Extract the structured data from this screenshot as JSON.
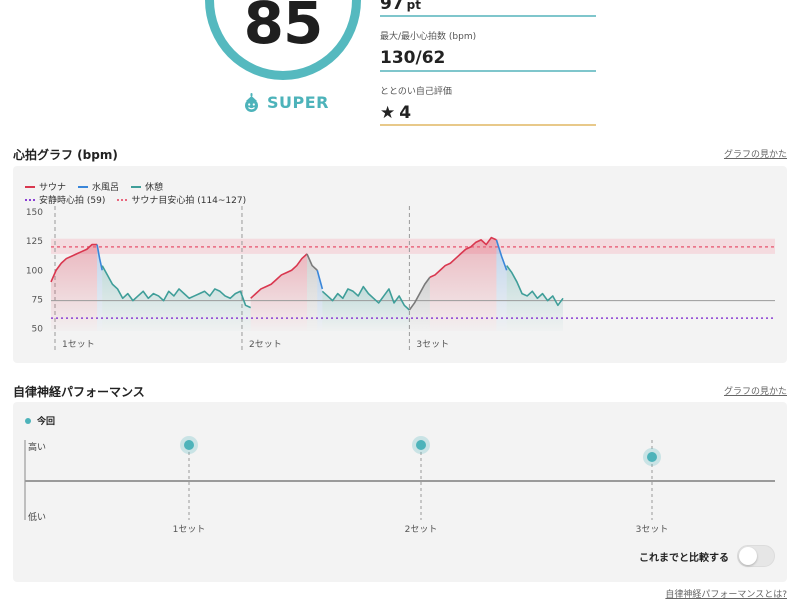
{
  "score": {
    "value": "85",
    "rank": "SUPER"
  },
  "stats": [
    {
      "label": "",
      "value": "97",
      "unit": "pt"
    },
    {
      "label": "最大/最小心拍数 (bpm)",
      "value": "130/62",
      "unit": ""
    },
    {
      "label": "ととのい自己評価",
      "value": "4",
      "unit": ""
    }
  ],
  "heart_section": {
    "title": "心拍グラフ (bpm)",
    "link": "グラフの見かた"
  },
  "legend": {
    "sauna": "サウナ",
    "water": "水風呂",
    "rest": "休憩",
    "resting_hr": "安静時心拍 (59)",
    "target_hr": "サウナ目安心拍 (114~127)"
  },
  "colors": {
    "sauna": "#d9374f",
    "water": "#3a86d9",
    "rest": "#3f9e99",
    "transition": "#7a7a7a",
    "resting": "#8b3fd4",
    "target": "#e9687f",
    "accent": "#4db3ba"
  },
  "chart_data": [
    {
      "type": "line",
      "title": "",
      "yticks": [
        150,
        125,
        100,
        75,
        50
      ],
      "ylim": [
        48,
        155
      ],
      "xlim": [
        0,
        100
      ],
      "sets": [
        "1セット",
        "2セット",
        "3セット"
      ],
      "resting_hr": 59,
      "target_band": [
        114,
        127
      ],
      "target_line": 120,
      "rest_baseline": 74,
      "series": [
        {
          "name": "サウナ",
          "kind": "sauna",
          "x": [
            0,
            1,
            2,
            3,
            4,
            5,
            6,
            7,
            8,
            9
          ],
          "values": [
            90,
            100,
            106,
            110,
            112,
            114,
            116,
            118,
            122,
            122
          ]
        },
        {
          "name": "水風呂",
          "kind": "water",
          "x": [
            9,
            9.5,
            10
          ],
          "values": [
            122,
            110,
            100
          ]
        },
        {
          "name": "休憩",
          "kind": "rest",
          "x": [
            10,
            11,
            12,
            13,
            14,
            15,
            16,
            17,
            18,
            19,
            20,
            21,
            22,
            23,
            24,
            25,
            26,
            27,
            28,
            29,
            30,
            31,
            32,
            33,
            34,
            35,
            36,
            37,
            38,
            39
          ],
          "values": [
            104,
            96,
            88,
            84,
            76,
            80,
            74,
            78,
            82,
            76,
            80,
            78,
            74,
            82,
            78,
            84,
            80,
            76,
            78,
            80,
            82,
            78,
            84,
            82,
            78,
            76,
            80,
            82,
            70,
            68
          ]
        },
        {
          "name": "サウナ",
          "kind": "sauna",
          "x": [
            39,
            40,
            41,
            42,
            43,
            44,
            45,
            46,
            47,
            48,
            49,
            50
          ],
          "values": [
            76,
            80,
            84,
            86,
            88,
            92,
            96,
            98,
            100,
            104,
            110,
            114
          ]
        },
        {
          "name": "休憩",
          "kind": "transition",
          "x": [
            50,
            51,
            52
          ],
          "values": [
            114,
            104,
            100
          ]
        },
        {
          "name": "水風呂",
          "kind": "water",
          "x": [
            52,
            53
          ],
          "values": [
            100,
            84
          ]
        },
        {
          "name": "休憩",
          "kind": "rest",
          "x": [
            53,
            54,
            55,
            56,
            57,
            58,
            59,
            60,
            61,
            62,
            63,
            64,
            65,
            66,
            67,
            68,
            69,
            70
          ],
          "values": [
            82,
            78,
            74,
            80,
            76,
            84,
            82,
            78,
            86,
            80,
            76,
            72,
            78,
            84,
            72,
            78,
            70,
            66
          ]
        },
        {
          "name": "休憩",
          "kind": "transition",
          "x": [
            70,
            71,
            72,
            73,
            74
          ],
          "values": [
            66,
            72,
            80,
            88,
            94
          ]
        },
        {
          "name": "サウナ",
          "kind": "sauna",
          "x": [
            74,
            75,
            76,
            77,
            78,
            79,
            80,
            81,
            82,
            83,
            84,
            85,
            86,
            87
          ],
          "values": [
            94,
            96,
            100,
            104,
            106,
            110,
            114,
            118,
            120,
            124,
            126,
            122,
            128,
            126
          ]
        },
        {
          "name": "水風呂",
          "kind": "water",
          "x": [
            87,
            88,
            89
          ],
          "values": [
            126,
            112,
            100
          ]
        },
        {
          "name": "休憩",
          "kind": "rest",
          "x": [
            89,
            90,
            91,
            92,
            93,
            94,
            95,
            96,
            97,
            98,
            99,
            100
          ],
          "values": [
            104,
            98,
            90,
            80,
            78,
            82,
            76,
            80,
            74,
            78,
            70,
            76
          ]
        }
      ]
    },
    {
      "type": "scatter",
      "title": "自律神経パフォーマンス",
      "ylabels": [
        "高い",
        "低い"
      ],
      "categories": [
        "1セット",
        "2セット",
        "3セット"
      ],
      "series": [
        {
          "name": "今回",
          "values": [
            0.6,
            0.6,
            0.4
          ]
        }
      ],
      "ylim": [
        -1,
        1
      ]
    }
  ],
  "ans_section": {
    "title": "自律神経パフォーマンス",
    "link": "グラフの見かた",
    "legend": "今回",
    "high": "高い",
    "low": "低い",
    "compare": "これまでと比較する",
    "compare_on": false
  },
  "bottom_link": "自律神経パフォーマンスとは?"
}
